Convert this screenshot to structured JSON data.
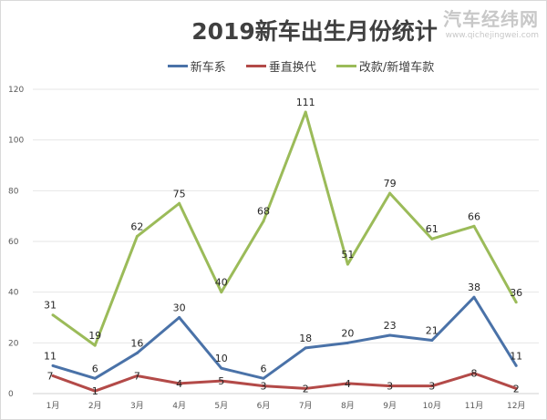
{
  "chart_data": {
    "type": "line",
    "title": "2019新车出生月份统计",
    "categories": [
      "1月",
      "2月",
      "3月",
      "4月",
      "5月",
      "6月",
      "7月",
      "8月",
      "9月",
      "10月",
      "11月",
      "12月"
    ],
    "series": [
      {
        "name": "新车系",
        "color": "#4a72a8",
        "values": [
          11,
          6,
          16,
          30,
          10,
          6,
          18,
          20,
          23,
          21,
          38,
          11
        ]
      },
      {
        "name": "垂直换代",
        "color": "#b34a48",
        "values": [
          7,
          1,
          7,
          4,
          5,
          3,
          2,
          4,
          3,
          3,
          8,
          2
        ]
      },
      {
        "name": "改款/新增车款",
        "color": "#9bbb59",
        "values": [
          31,
          19,
          62,
          75,
          40,
          68,
          111,
          51,
          79,
          61,
          66,
          36
        ]
      }
    ],
    "yticks": [
      0,
      20,
      40,
      60,
      80,
      100,
      120
    ],
    "ylim": [
      0,
      120
    ],
    "grid": true,
    "legend": "top",
    "data_labels": true
  },
  "watermark": {
    "name": "汽车经纬网",
    "url": "www.qichejingwei.com"
  }
}
